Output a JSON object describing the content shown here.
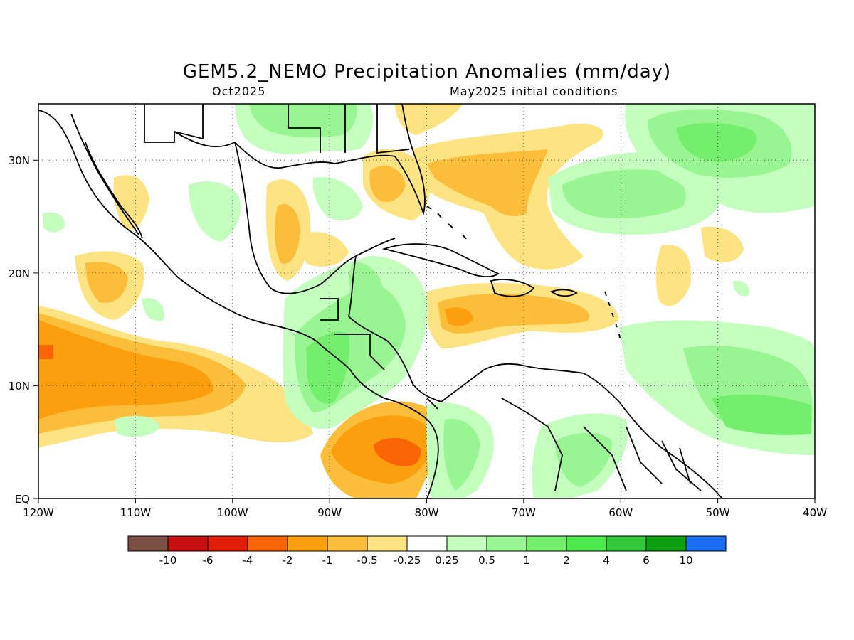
{
  "title": "GEM5.2_NEMO Precipitation Anomalies (mm/day)",
  "subtitle_left": "Oct2025",
  "subtitle_right": "May2025 initial conditions",
  "map": {
    "lon_range": [
      -120,
      -40
    ],
    "lat_range": [
      0,
      35
    ],
    "x_tick_labels": [
      "120W",
      "110W",
      "100W",
      "90W",
      "80W",
      "70W",
      "60W",
      "50W",
      "40W"
    ],
    "y_tick_labels": [
      "EQ",
      "10N",
      "20N",
      "30N"
    ],
    "grid": "dotted"
  },
  "legend": {
    "labels": [
      "-10",
      "-6",
      "-4",
      "-2",
      "-1",
      "-0.5",
      "-0.25",
      "0.25",
      "0.5",
      "1",
      "2",
      "4",
      "6",
      "10"
    ],
    "colors": [
      "#7a4f44",
      "#c41010",
      "#e21e0b",
      "#fa6405",
      "#fb9f0f",
      "#fcbe3a",
      "#fde381",
      "#ffffff",
      "#c4ffc0",
      "#99f591",
      "#74ee6c",
      "#4de84d",
      "#32c83a",
      "#0e9f0f",
      "#1b6ef1"
    ]
  }
}
